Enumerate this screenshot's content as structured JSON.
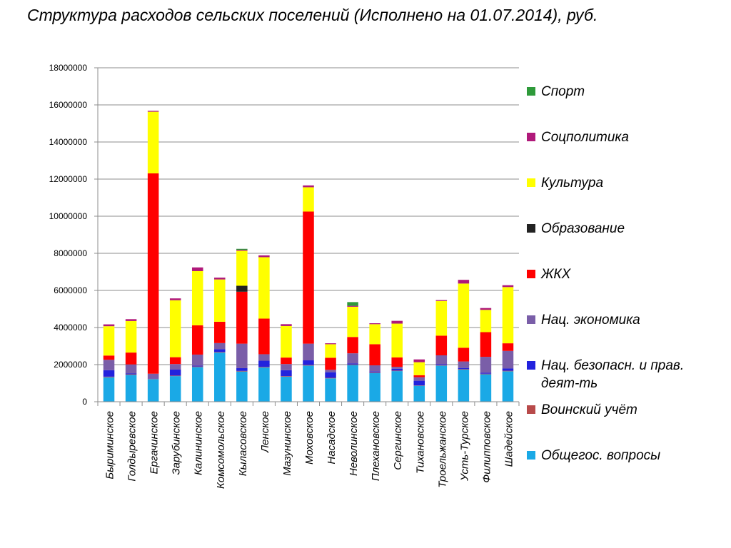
{
  "title": "Структура расходов сельских поселений (Исполнено на 01.07.2014), руб.",
  "chart_data": {
    "type": "bar",
    "stacked": true,
    "title": "",
    "xlabel": "",
    "ylabel": "",
    "ylim": [
      0,
      18000000
    ],
    "yticks": [
      0,
      2000000,
      4000000,
      6000000,
      8000000,
      10000000,
      12000000,
      14000000,
      16000000,
      18000000
    ],
    "grid": true,
    "legend_position": "right",
    "categories": [
      "Быриминское",
      "Голдыревское",
      "Ергачинское",
      "Зарубинское",
      "Калининское",
      "Комсомольское",
      "Кыласовское",
      "Ленское",
      "Мазунинское",
      "Моховское",
      "Насадское",
      "Неволинское",
      "Плехановское",
      "Сергинское",
      "Тихановское",
      "Троельжанское",
      "Усть-Турское",
      "Филипповское",
      "Шадейское"
    ],
    "series": [
      {
        "name": "Общегос. вопросы",
        "color": "#1aa9e6",
        "values": [
          1320000,
          1450000,
          1220000,
          1380000,
          1870000,
          2650000,
          1630000,
          1850000,
          1350000,
          1950000,
          1260000,
          1980000,
          1550000,
          1650000,
          860000,
          1950000,
          1730000,
          1480000,
          1640000
        ]
      },
      {
        "name": "Воинский учёт",
        "color": "#b84a4a",
        "values": [
          30000,
          30000,
          20000,
          30000,
          30000,
          30000,
          30000,
          30000,
          30000,
          30000,
          30000,
          30000,
          30000,
          30000,
          20000,
          30000,
          30000,
          30000,
          30000
        ]
      },
      {
        "name": "Нац. безопасн. и прав. деят-ть",
        "color": "#2222dd",
        "values": [
          350000,
          40000,
          10000,
          320000,
          40000,
          150000,
          150000,
          330000,
          320000,
          250000,
          300000,
          50000,
          50000,
          100000,
          250000,
          50000,
          60000,
          50000,
          120000
        ]
      },
      {
        "name": "Нац. экономика",
        "color": "#7a5ea8",
        "values": [
          560000,
          490000,
          260000,
          300000,
          600000,
          330000,
          1320000,
          350000,
          330000,
          900000,
          130000,
          550000,
          330000,
          100000,
          190000,
          470000,
          350000,
          860000,
          950000
        ]
      },
      {
        "name": "ЖКХ",
        "color": "#ff0000",
        "values": [
          230000,
          640000,
          10800000,
          370000,
          1580000,
          1150000,
          2800000,
          1920000,
          350000,
          7120000,
          650000,
          880000,
          1140000,
          510000,
          110000,
          1060000,
          740000,
          1330000,
          410000
        ]
      },
      {
        "name": "Образование",
        "color": "#222222",
        "values": [
          0,
          0,
          0,
          0,
          0,
          0,
          320000,
          0,
          0,
          0,
          0,
          0,
          0,
          0,
          0,
          0,
          0,
          0,
          0
        ]
      },
      {
        "name": "Культура",
        "color": "#ffff00",
        "values": [
          1580000,
          1700000,
          3320000,
          3070000,
          2920000,
          2280000,
          1890000,
          3310000,
          1700000,
          1310000,
          730000,
          1630000,
          1080000,
          1820000,
          700000,
          1870000,
          3460000,
          1200000,
          3030000
        ]
      },
      {
        "name": "Соцполитика",
        "color": "#b0197a",
        "values": [
          100000,
          100000,
          50000,
          100000,
          200000,
          100000,
          50000,
          100000,
          100000,
          100000,
          50000,
          50000,
          50000,
          150000,
          150000,
          50000,
          200000,
          100000,
          100000
        ]
      },
      {
        "name": "Спорт",
        "color": "#2e9a3a",
        "values": [
          0,
          0,
          0,
          0,
          0,
          0,
          50000,
          0,
          0,
          0,
          0,
          200000,
          0,
          0,
          0,
          0,
          0,
          0,
          0
        ]
      }
    ],
    "legend_order": [
      "Спорт",
      "Соцполитика",
      "Культура",
      "Образование",
      "ЖКХ",
      "Нац. экономика",
      "Нац. безопасн. и прав. деят-ть",
      "Воинский учёт",
      "Общегос. вопросы"
    ]
  }
}
